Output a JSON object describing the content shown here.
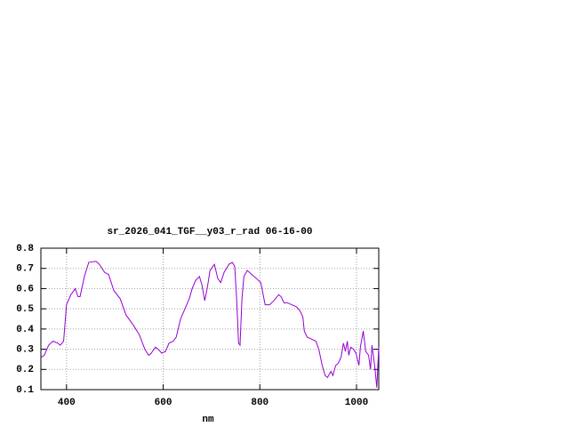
{
  "chart_data": {
    "type": "line",
    "title": "sr_2026_041_TGF__y03_r_rad 06-16-00",
    "x_label": "nm",
    "xlim": [
      347,
      1046
    ],
    "xticks": [
      400,
      600,
      800,
      1000
    ],
    "ylim": [
      0.1,
      0.8
    ],
    "yticks": [
      0.1,
      0.2,
      0.3,
      0.4,
      0.5,
      0.6,
      0.7,
      0.8
    ],
    "grid": true,
    "x": [
      347,
      354,
      363,
      372,
      382,
      387,
      394,
      400,
      409,
      418,
      424,
      428,
      437,
      446,
      461,
      468,
      479,
      487,
      498,
      511,
      523,
      538,
      551,
      562,
      570,
      575,
      584,
      590,
      597,
      605,
      612,
      621,
      627,
      636,
      645,
      654,
      660,
      667,
      675,
      680,
      686,
      691,
      697,
      706,
      713,
      719,
      726,
      736,
      743,
      748,
      752,
      756,
      759,
      763,
      767,
      774,
      783,
      793,
      802,
      811,
      820,
      829,
      839,
      844,
      850,
      857,
      866,
      876,
      883,
      889,
      892,
      898,
      907,
      916,
      922,
      929,
      935,
      940,
      947,
      951,
      957,
      962,
      968,
      973,
      977,
      981,
      984,
      988,
      994,
      999,
      1005,
      1008,
      1014,
      1019,
      1025,
      1029,
      1032,
      1038,
      1042,
      1046
    ],
    "series": [
      {
        "color": "#9400d3",
        "values": [
          0.26,
          0.27,
          0.32,
          0.34,
          0.33,
          0.32,
          0.34,
          0.52,
          0.57,
          0.6,
          0.56,
          0.56,
          0.66,
          0.73,
          0.735,
          0.72,
          0.68,
          0.67,
          0.59,
          0.55,
          0.47,
          0.42,
          0.37,
          0.3,
          0.27,
          0.28,
          0.31,
          0.3,
          0.28,
          0.29,
          0.33,
          0.34,
          0.36,
          0.45,
          0.5,
          0.55,
          0.6,
          0.64,
          0.66,
          0.62,
          0.54,
          0.6,
          0.69,
          0.72,
          0.65,
          0.63,
          0.68,
          0.72,
          0.73,
          0.71,
          0.55,
          0.33,
          0.32,
          0.55,
          0.66,
          0.69,
          0.67,
          0.65,
          0.63,
          0.52,
          0.52,
          0.54,
          0.57,
          0.56,
          0.53,
          0.53,
          0.52,
          0.51,
          0.49,
          0.46,
          0.39,
          0.36,
          0.35,
          0.34,
          0.3,
          0.22,
          0.17,
          0.16,
          0.19,
          0.17,
          0.22,
          0.23,
          0.26,
          0.33,
          0.29,
          0.34,
          0.27,
          0.31,
          0.3,
          0.28,
          0.22,
          0.31,
          0.39,
          0.29,
          0.27,
          0.2,
          0.32,
          0.21,
          0.11,
          0.31
        ]
      }
    ]
  }
}
